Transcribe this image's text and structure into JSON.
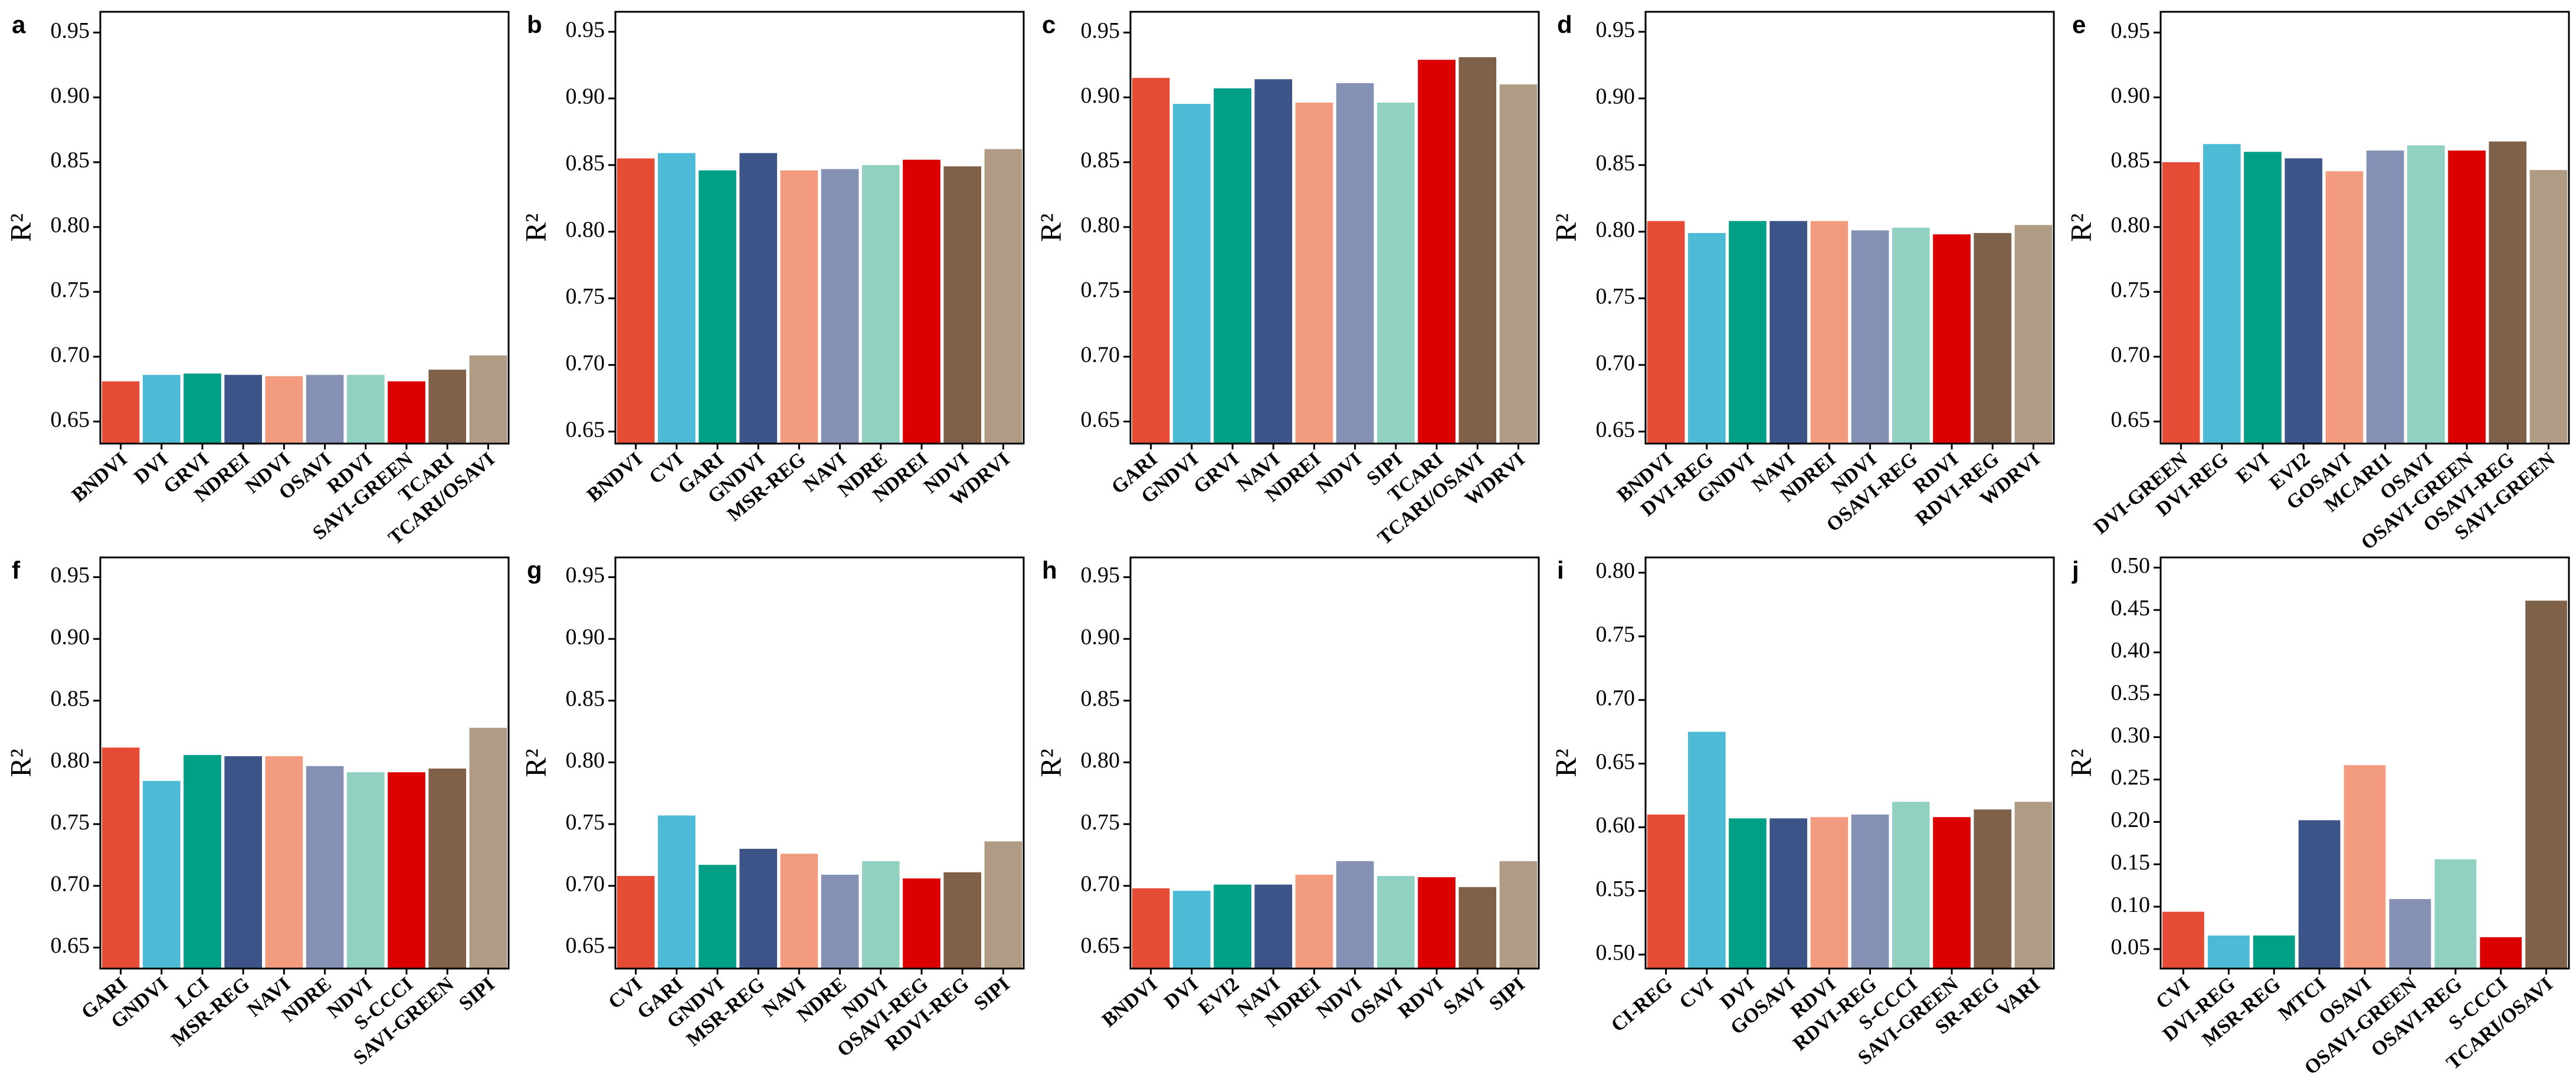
{
  "chart_data": [
    {
      "type": "bar",
      "panel": "a",
      "ylabel": "R²",
      "categories": [
        "BNDVI",
        "DVI",
        "GRVI",
        "NDREI",
        "NDVI",
        "OSAVI",
        "RDVI",
        "SAVI-GREEN",
        "TCARI",
        "TCARI/OSAVI"
      ],
      "values": [
        0.681,
        0.686,
        0.687,
        0.686,
        0.685,
        0.686,
        0.686,
        0.681,
        0.69,
        0.701
      ],
      "colors": [
        "#e64b35",
        "#4dbbd5",
        "#00a087",
        "#3c5488",
        "#f39b7f",
        "#8491b4",
        "#91d1c2",
        "#dc0000",
        "#7e6148",
        "#b09c85"
      ],
      "ylim": [
        0.633,
        0.966
      ],
      "yticks": [
        0.65,
        {
          "value": 0.7,
          "label": "0.70"
        },
        0.75,
        {
          "value": 0.8,
          "label": "0.80"
        },
        0.85,
        {
          "value": 0.9,
          "label": "0.90"
        },
        0.95
      ]
    },
    {
      "type": "bar",
      "panel": "b",
      "ylabel": "R²",
      "categories": [
        "BNDVI",
        "CVI",
        "GARI",
        "GNDVI",
        "MSR-REG",
        "NAVI",
        "NDRE",
        "NDREI",
        "NDVI",
        "WDRVI"
      ],
      "values": [
        0.855,
        0.859,
        0.846,
        0.859,
        0.846,
        0.847,
        0.85,
        0.854,
        0.849,
        0.862
      ],
      "colors": [
        "#e64b35",
        "#4dbbd5",
        "#00a087",
        "#3c5488",
        "#f39b7f",
        "#8491b4",
        "#91d1c2",
        "#dc0000",
        "#7e6148",
        "#b09c85"
      ],
      "ylim": [
        0.641,
        0.965
      ],
      "yticks": [
        0.65,
        {
          "value": 0.7,
          "label": "0.70"
        },
        0.75,
        {
          "value": 0.8,
          "label": "0.80"
        },
        0.85,
        {
          "value": 0.9,
          "label": "0.90"
        },
        0.95
      ]
    },
    {
      "type": "bar",
      "panel": "c",
      "ylabel": "R²",
      "categories": [
        "GARI",
        "GNDVI",
        "GRVI",
        "NAVI",
        "NDREI",
        "NDVI",
        "SIPI",
        "TCARI",
        "TCARI/OSAVI",
        "WDRVI"
      ],
      "values": [
        0.915,
        0.895,
        0.907,
        0.914,
        0.896,
        0.911,
        0.896,
        0.929,
        0.931,
        0.91
      ],
      "colors": [
        "#e64b35",
        "#4dbbd5",
        "#00a087",
        "#3c5488",
        "#f39b7f",
        "#8491b4",
        "#91d1c2",
        "#dc0000",
        "#7e6148",
        "#b09c85"
      ],
      "ylim": [
        0.633,
        0.966
      ],
      "yticks": [
        0.65,
        {
          "value": 0.7,
          "label": "0.70"
        },
        0.75,
        {
          "value": 0.8,
          "label": "0.80"
        },
        0.85,
        {
          "value": 0.9,
          "label": "0.90"
        },
        0.95
      ]
    },
    {
      "type": "bar",
      "panel": "d",
      "ylabel": "R²",
      "categories": [
        "BNDVI",
        "DVI-REG",
        "GNDVI",
        "NAVI",
        "NDREI",
        "NDVI",
        "OSAVI-REG",
        "RDVI",
        "RDVI-REG",
        "WDRVI"
      ],
      "values": [
        0.808,
        0.799,
        0.808,
        0.808,
        0.808,
        0.801,
        0.803,
        0.798,
        0.799,
        0.805
      ],
      "colors": [
        "#e64b35",
        "#4dbbd5",
        "#00a087",
        "#3c5488",
        "#f39b7f",
        "#8491b4",
        "#91d1c2",
        "#dc0000",
        "#7e6148",
        "#b09c85"
      ],
      "ylim": [
        0.641,
        0.965
      ],
      "yticks": [
        0.65,
        {
          "value": 0.7,
          "label": "0.70"
        },
        0.75,
        {
          "value": 0.8,
          "label": "0.80"
        },
        0.85,
        {
          "value": 0.9,
          "label": "0.90"
        },
        0.95
      ]
    },
    {
      "type": "bar",
      "panel": "e",
      "ylabel": "R²",
      "categories": [
        "DVI-GREEN",
        "DVI-REG",
        "EVI",
        "EVI2",
        "GOSAVI",
        "MCARI1",
        "OSAVI",
        "OSAVI-GREEN",
        "OSAVI-REG",
        "SAVI-GREEN"
      ],
      "values": [
        0.85,
        0.864,
        0.858,
        0.853,
        0.843,
        0.859,
        0.863,
        0.859,
        0.866,
        0.844
      ],
      "colors": [
        "#e64b35",
        "#4dbbd5",
        "#00a087",
        "#3c5488",
        "#f39b7f",
        "#8491b4",
        "#91d1c2",
        "#dc0000",
        "#7e6148",
        "#b09c85"
      ],
      "ylim": [
        0.633,
        0.966
      ],
      "yticks": [
        0.65,
        {
          "value": 0.7,
          "label": "0.70"
        },
        0.75,
        {
          "value": 0.8,
          "label": "0.80"
        },
        0.85,
        {
          "value": 0.9,
          "label": "0.90"
        },
        0.95
      ]
    },
    {
      "type": "bar",
      "panel": "f",
      "ylabel": "R²",
      "categories": [
        "GARI",
        "GNDVI",
        "LCI",
        "MSR-REG",
        "NAVI",
        "NDRE",
        "NDVI",
        "S-CCCI",
        "SAVI-GREEN",
        "SIPI"
      ],
      "values": [
        0.812,
        0.785,
        0.806,
        0.805,
        0.805,
        0.797,
        0.792,
        0.792,
        0.795,
        0.828
      ],
      "colors": [
        "#e64b35",
        "#4dbbd5",
        "#00a087",
        "#3c5488",
        "#f39b7f",
        "#8491b4",
        "#91d1c2",
        "#dc0000",
        "#7e6148",
        "#b09c85"
      ],
      "ylim": [
        0.633,
        0.966
      ],
      "yticks": [
        0.65,
        {
          "value": 0.7,
          "label": "0.70"
        },
        0.75,
        {
          "value": 0.8,
          "label": "0.80"
        },
        0.85,
        {
          "value": 0.9,
          "label": "0.90"
        },
        0.95
      ]
    },
    {
      "type": "bar",
      "panel": "g",
      "ylabel": "R²",
      "categories": [
        "CVI",
        "GARI",
        "GNDVI",
        "MSR-REG",
        "NAVI",
        "NDRE",
        "NDVI",
        "OSAVI-REG",
        "RDVI-REG",
        "SIPI"
      ],
      "values": [
        0.708,
        0.757,
        0.717,
        0.73,
        0.726,
        0.709,
        0.72,
        0.706,
        0.711,
        0.736
      ],
      "colors": [
        "#e64b35",
        "#4dbbd5",
        "#00a087",
        "#3c5488",
        "#f39b7f",
        "#8491b4",
        "#91d1c2",
        "#dc0000",
        "#7e6148",
        "#b09c85"
      ],
      "ylim": [
        0.633,
        0.966
      ],
      "yticks": [
        0.65,
        {
          "value": 0.7,
          "label": "0.70"
        },
        0.75,
        {
          "value": 0.8,
          "label": "0.80"
        },
        0.85,
        {
          "value": 0.9,
          "label": "0.90"
        },
        0.95
      ]
    },
    {
      "type": "bar",
      "panel": "h",
      "ylabel": "R²",
      "categories": [
        "BNDVI",
        "DVI",
        "EVI2",
        "NAVI",
        "NDREI",
        "NDVI",
        "OSAVI",
        "RDVI",
        "SAVI",
        "SIPI"
      ],
      "values": [
        0.698,
        0.696,
        0.701,
        0.701,
        0.709,
        0.72,
        0.708,
        0.707,
        0.699,
        0.72
      ],
      "colors": [
        "#e64b35",
        "#4dbbd5",
        "#00a087",
        "#3c5488",
        "#f39b7f",
        "#8491b4",
        "#91d1c2",
        "#dc0000",
        "#7e6148",
        "#b09c85"
      ],
      "ylim": [
        0.633,
        0.966
      ],
      "yticks": [
        0.65,
        {
          "value": 0.7,
          "label": "0.70"
        },
        0.75,
        {
          "value": 0.8,
          "label": "0.80"
        },
        0.85,
        {
          "value": 0.9,
          "label": "0.90"
        },
        0.95
      ]
    },
    {
      "type": "bar",
      "panel": "i",
      "ylabel": "R²",
      "categories": [
        "CI-REG",
        "CVI",
        "DVI",
        "GOSAVI",
        "RDVI",
        "RDVI-REG",
        "S-CCCI",
        "SAVI-GREEN",
        "SR-REG",
        "VARI"
      ],
      "values": [
        0.61,
        0.675,
        0.607,
        0.607,
        0.608,
        0.61,
        0.62,
        0.608,
        0.614,
        0.62
      ],
      "colors": [
        "#e64b35",
        "#4dbbd5",
        "#00a087",
        "#3c5488",
        "#f39b7f",
        "#8491b4",
        "#91d1c2",
        "#dc0000",
        "#7e6148",
        "#b09c85"
      ],
      "ylim": [
        0.489,
        0.812
      ],
      "yticks": [
        {
          "value": 0.5,
          "label": "0.50"
        },
        0.55,
        {
          "value": 0.6,
          "label": "0.60"
        },
        0.65,
        {
          "value": 0.7,
          "label": "0.70"
        },
        0.75,
        {
          "value": 0.8,
          "label": "0.80"
        }
      ]
    },
    {
      "type": "bar",
      "panel": "j",
      "ylabel": "R²",
      "categories": [
        "CVI",
        "DVI-REG",
        "MSR-REG",
        "MTCI",
        "OSAVI",
        "OSAVI-GREEN",
        "OSAVI-REG",
        "S-CCCI",
        "TCARI/OSAVI"
      ],
      "values": [
        0.094,
        0.066,
        0.066,
        0.202,
        0.267,
        0.109,
        0.156,
        0.064,
        0.461
      ],
      "colors": [
        "#e64b35",
        "#4dbbd5",
        "#00a087",
        "#3c5488",
        "#f39b7f",
        "#8491b4",
        "#91d1c2",
        "#dc0000",
        "#7e6148"
      ],
      "ylim": [
        0.027,
        0.512
      ],
      "yticks": [
        0.05,
        {
          "value": 0.1,
          "label": "0.10"
        },
        0.15,
        {
          "value": 0.2,
          "label": "0.20"
        },
        0.25,
        {
          "value": 0.3,
          "label": "0.30"
        },
        0.35,
        {
          "value": 0.4,
          "label": "0.40"
        },
        0.45,
        {
          "value": 0.5,
          "label": "0.50"
        }
      ]
    }
  ]
}
